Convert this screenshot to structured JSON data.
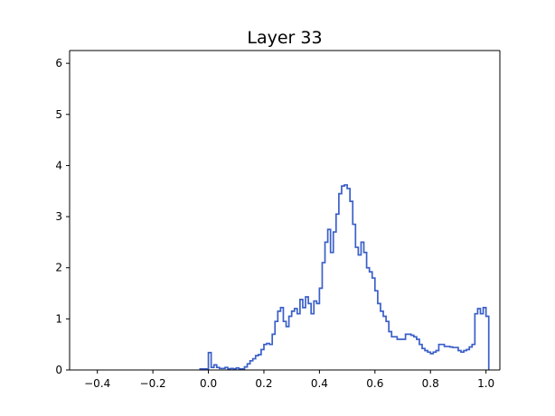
{
  "chart_data": {
    "type": "line",
    "title": "Layer 33",
    "xlabel": "",
    "ylabel": "",
    "xlim": [
      -0.5,
      1.05
    ],
    "ylim": [
      0,
      6.25
    ],
    "grid": false,
    "legend": "none",
    "x_ticks": [
      {
        "value": -0.4,
        "label": "−0.4"
      },
      {
        "value": -0.2,
        "label": "−0.2"
      },
      {
        "value": 0.0,
        "label": "0.0"
      },
      {
        "value": 0.2,
        "label": "0.2"
      },
      {
        "value": 0.4,
        "label": "0.4"
      },
      {
        "value": 0.6,
        "label": "0.6"
      },
      {
        "value": 0.8,
        "label": "0.8"
      },
      {
        "value": 1.0,
        "label": "1.0"
      }
    ],
    "y_ticks": [
      {
        "value": 0,
        "label": "0"
      },
      {
        "value": 1,
        "label": "1"
      },
      {
        "value": 2,
        "label": "2"
      },
      {
        "value": 3,
        "label": "3"
      },
      {
        "value": 4,
        "label": "4"
      },
      {
        "value": 5,
        "label": "5"
      },
      {
        "value": 6,
        "label": "6"
      }
    ],
    "series": [
      {
        "step": true,
        "color": "#3a5fc8",
        "x": [
          -0.03,
          -0.02,
          -0.01,
          0.0,
          0.01,
          0.02,
          0.03,
          0.04,
          0.05,
          0.06,
          0.07,
          0.08,
          0.09,
          0.1,
          0.11,
          0.12,
          0.13,
          0.14,
          0.15,
          0.16,
          0.17,
          0.18,
          0.19,
          0.2,
          0.21,
          0.22,
          0.23,
          0.24,
          0.25,
          0.26,
          0.27,
          0.28,
          0.29,
          0.3,
          0.31,
          0.32,
          0.33,
          0.34,
          0.35,
          0.36,
          0.37,
          0.38,
          0.39,
          0.4,
          0.41,
          0.42,
          0.43,
          0.44,
          0.45,
          0.46,
          0.47,
          0.48,
          0.49,
          0.5,
          0.51,
          0.52,
          0.53,
          0.54,
          0.55,
          0.56,
          0.57,
          0.58,
          0.59,
          0.6,
          0.61,
          0.62,
          0.63,
          0.64,
          0.65,
          0.66,
          0.67,
          0.68,
          0.69,
          0.7,
          0.71,
          0.72,
          0.73,
          0.74,
          0.75,
          0.76,
          0.77,
          0.78,
          0.79,
          0.8,
          0.81,
          0.82,
          0.83,
          0.84,
          0.85,
          0.86,
          0.87,
          0.88,
          0.89,
          0.9,
          0.91,
          0.92,
          0.93,
          0.94,
          0.95,
          0.96,
          0.97,
          0.98,
          0.99,
          1.0
        ],
        "values": [
          0.02,
          0.02,
          0.02,
          0.34,
          0.05,
          0.1,
          0.05,
          0.03,
          0.03,
          0.05,
          0.02,
          0.03,
          0.02,
          0.04,
          0.02,
          0.02,
          0.06,
          0.12,
          0.18,
          0.22,
          0.28,
          0.3,
          0.4,
          0.5,
          0.52,
          0.5,
          0.7,
          0.95,
          1.15,
          1.22,
          0.95,
          0.85,
          1.05,
          1.15,
          1.2,
          1.1,
          1.38,
          1.22,
          1.43,
          1.3,
          1.1,
          1.35,
          1.3,
          1.6,
          2.1,
          2.5,
          2.75,
          2.3,
          2.7,
          3.05,
          3.45,
          3.6,
          3.62,
          3.55,
          3.3,
          2.85,
          2.4,
          2.25,
          2.5,
          2.3,
          2.0,
          1.92,
          1.8,
          1.55,
          1.3,
          1.15,
          1.05,
          0.95,
          0.75,
          0.65,
          0.65,
          0.6,
          0.6,
          0.6,
          0.7,
          0.7,
          0.68,
          0.65,
          0.6,
          0.5,
          0.42,
          0.38,
          0.35,
          0.32,
          0.35,
          0.38,
          0.5,
          0.5,
          0.46,
          0.46,
          0.45,
          0.44,
          0.44,
          0.38,
          0.35,
          0.38,
          0.4,
          0.45,
          0.5,
          1.1,
          1.2,
          1.1,
          1.22,
          1.05
        ]
      }
    ]
  }
}
